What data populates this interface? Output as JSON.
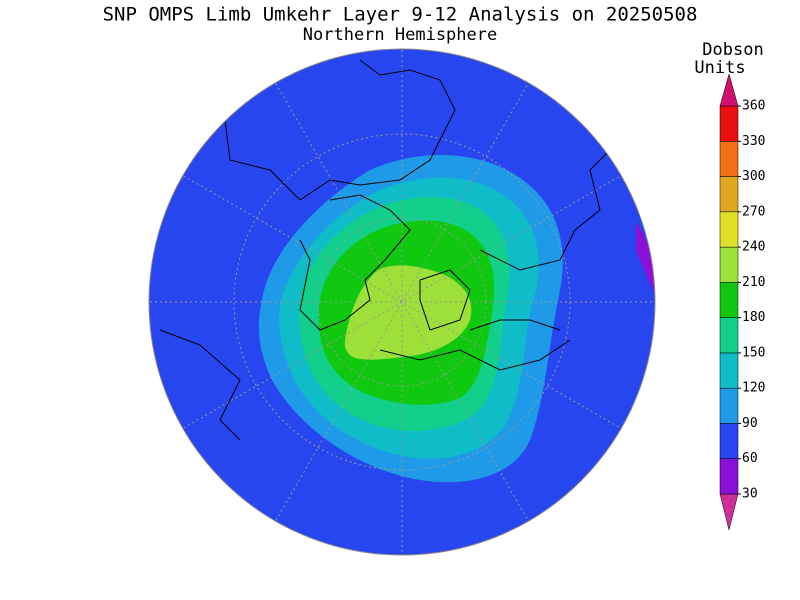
{
  "header": {
    "title": "SNP OMPS Limb Umkehr Layer 9-12 Analysis on 20250508",
    "subtitle": "Northern Hemisphere"
  },
  "colorbar": {
    "label_lines": [
      "Dobson",
      "Units"
    ],
    "ticks": [
      30,
      60,
      90,
      120,
      150,
      180,
      210,
      240,
      270,
      300,
      330,
      360
    ],
    "colors": [
      "#d0309a",
      "#8a10d8",
      "#2846f0",
      "#1e9ae8",
      "#10bcc8",
      "#12d08c",
      "#10c810",
      "#9ee03a",
      "#e0e028",
      "#e0a820",
      "#f07018",
      "#e81010",
      "#d0106e"
    ]
  }
}
